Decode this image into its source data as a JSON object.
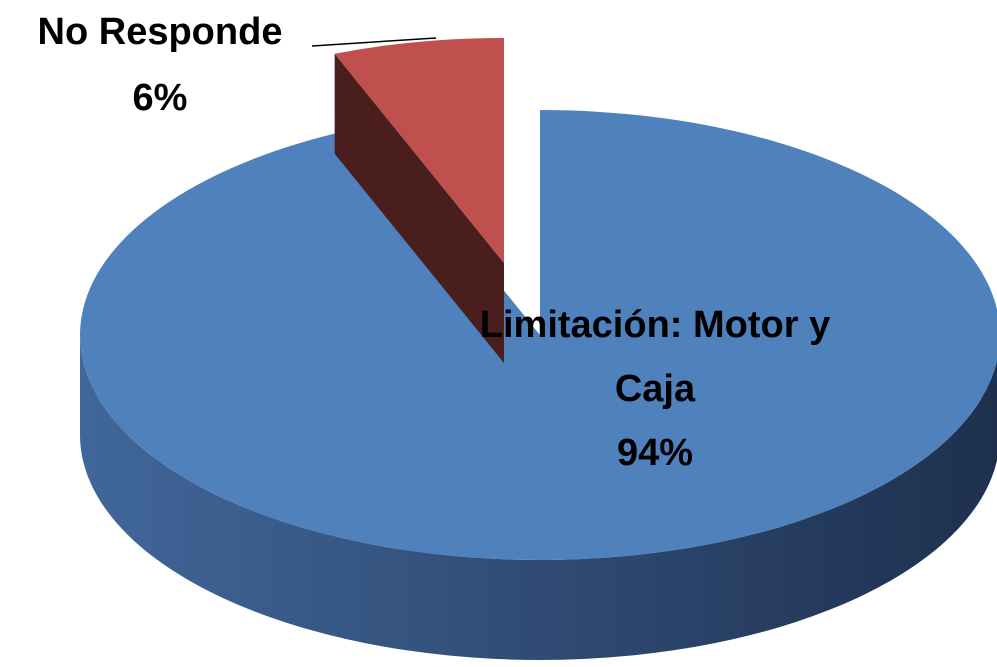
{
  "chart_data": {
    "type": "pie",
    "categories": [
      "Limitación: Motor y Caja",
      "No Responde"
    ],
    "values": [
      94,
      6
    ],
    "value_labels": [
      "94%",
      "6%"
    ],
    "colors": [
      "#4f81bd",
      "#c0504d"
    ]
  }
}
